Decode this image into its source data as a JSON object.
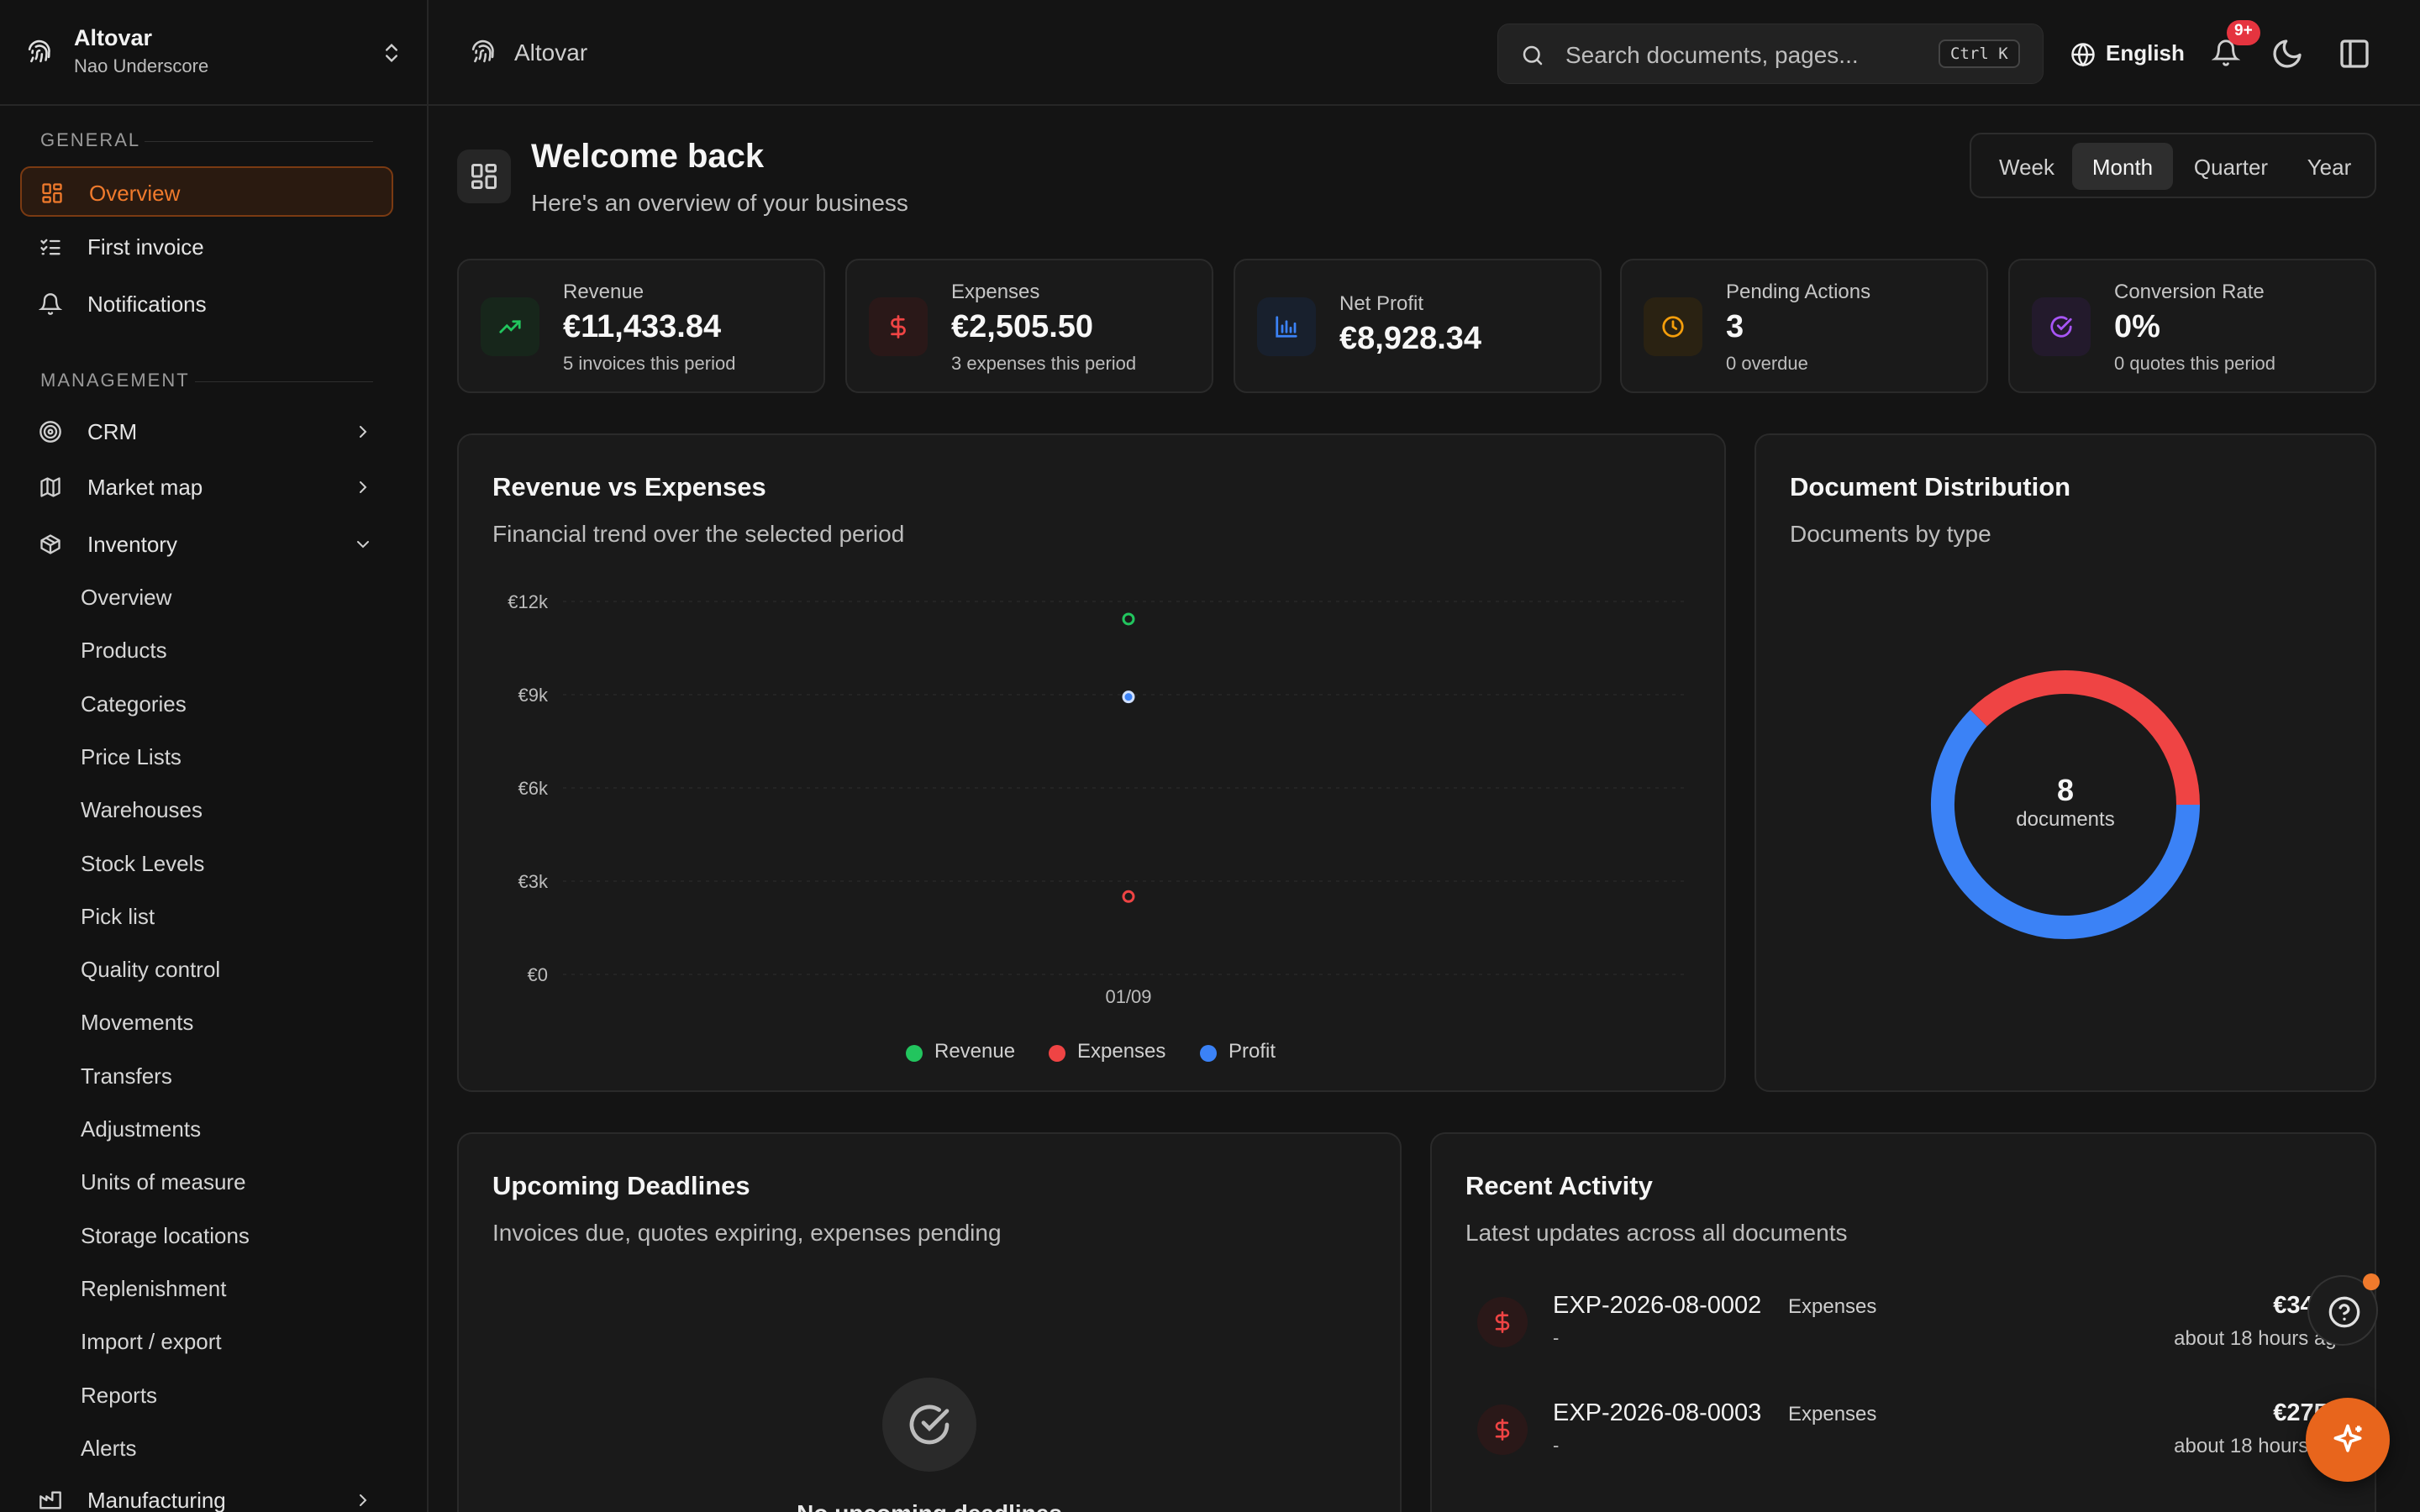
{
  "org": {
    "name": "Altovar",
    "user": "Nao Underscore"
  },
  "sidebar": {
    "general_label": "GENERAL",
    "management_label": "MANAGEMENT",
    "general": [
      {
        "label": "Overview",
        "icon": "layout-grid-icon"
      },
      {
        "label": "First invoice",
        "icon": "list-checks-icon"
      },
      {
        "label": "Notifications",
        "icon": "bell-icon"
      }
    ],
    "management": [
      {
        "label": "CRM",
        "icon": "target-icon"
      },
      {
        "label": "Market map",
        "icon": "map-icon"
      },
      {
        "label": "Inventory",
        "icon": "package-icon"
      }
    ],
    "inventory_items": [
      "Overview",
      "Products",
      "Categories",
      "Price Lists",
      "Warehouses",
      "Stock Levels",
      "Pick list",
      "Quality control",
      "Movements",
      "Transfers",
      "Adjustments",
      "Units of measure",
      "Storage locations",
      "Replenishment",
      "Import / export",
      "Reports",
      "Alerts"
    ],
    "manufacturing": {
      "label": "Manufacturing",
      "icon": "factory-icon"
    }
  },
  "header": {
    "breadcrumb": "Altovar",
    "search_placeholder": "Search documents, pages...",
    "search_shortcut": "Ctrl K",
    "language": "English",
    "notification_badge": "9+"
  },
  "welcome": {
    "title": "Welcome back",
    "subtitle": "Here's an overview of your business"
  },
  "periods": {
    "options": [
      "Week",
      "Month",
      "Quarter",
      "Year"
    ],
    "selected": "Month"
  },
  "stats": [
    {
      "label": "Revenue",
      "value": "€11,433.84",
      "note": "5 invoices this period",
      "color": "#22c55e"
    },
    {
      "label": "Expenses",
      "value": "€2,505.50",
      "note": "3 expenses this period",
      "color": "#ef4444"
    },
    {
      "label": "Net Profit",
      "value": "€8,928.34",
      "note": "",
      "color": "#3b82f6"
    },
    {
      "label": "Pending Actions",
      "value": "3",
      "note": "0 overdue",
      "color": "#f59e0b"
    },
    {
      "label": "Conversion Rate",
      "value": "0%",
      "note": "0 quotes this period",
      "color": "#a855f7"
    }
  ],
  "revenue_chart": {
    "title": "Revenue vs Expenses",
    "subtitle": "Financial trend over the selected period"
  },
  "distribution": {
    "title": "Document Distribution",
    "subtitle": "Documents by type",
    "center_value": "8",
    "center_label": "documents"
  },
  "chart_data": [
    {
      "type": "scatter",
      "title": "Revenue vs Expenses",
      "x": [
        "01/09"
      ],
      "yticks": [
        "€0",
        "€3k",
        "€6k",
        "€9k",
        "€12k"
      ],
      "ylim": [
        0,
        12000
      ],
      "grid": true,
      "legend": "bottom",
      "series": [
        {
          "name": "Revenue",
          "values": [
            11433.84
          ],
          "color": "#22c55e"
        },
        {
          "name": "Expenses",
          "values": [
            2505.5
          ],
          "color": "#ef4444"
        },
        {
          "name": "Profit",
          "values": [
            8928.34
          ],
          "color": "#3b82f6"
        }
      ]
    },
    {
      "type": "pie",
      "title": "Document Distribution",
      "slices": [
        {
          "value": 5,
          "color": "#3b82f6"
        },
        {
          "value": 3,
          "color": "#ef4444"
        }
      ]
    }
  ],
  "deadlines": {
    "title": "Upcoming Deadlines",
    "subtitle": "Invoices due, quotes expiring, expenses pending",
    "empty_text": "No upcoming deadlines"
  },
  "activity": {
    "title": "Recent Activity",
    "subtitle": "Latest updates across all documents",
    "items": [
      {
        "id": "EXP-2026-08-0002",
        "type": "Expenses",
        "dash": "-",
        "amount": "€340.5",
        "time": "about 18 hours ago"
      },
      {
        "id": "EXP-2026-08-0003",
        "type": "Expenses",
        "dash": "-",
        "amount": "€275.0",
        "time": "about 18 hours ago"
      }
    ]
  }
}
